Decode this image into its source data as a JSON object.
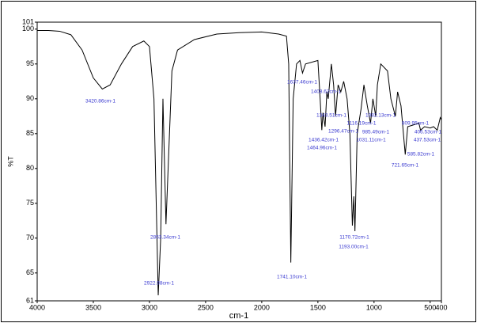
{
  "chart_data": {
    "type": "line",
    "x_label": "cm-1",
    "y_label": "%T",
    "x": [
      4000,
      3900,
      3800,
      3700,
      3600,
      3500,
      3420,
      3350,
      3250,
      3150,
      3050,
      3000,
      2960,
      2922,
      2900,
      2880,
      2853,
      2800,
      2750,
      2600,
      2400,
      2200,
      2000,
      1850,
      1780,
      1760,
      1741,
      1720,
      1690,
      1660,
      1637,
      1610,
      1500,
      1480,
      1465,
      1455,
      1436,
      1420,
      1408,
      1380,
      1360,
      1343,
      1320,
      1296,
      1270,
      1240,
      1215,
      1193,
      1180,
      1170,
      1150,
      1116,
      1090,
      1060,
      1031,
      1010,
      985,
      970,
      940,
      880,
      850,
      810,
      790,
      760,
      722,
      700,
      600,
      586,
      550,
      500,
      470,
      437,
      410,
      400
    ],
    "values": [
      99.8,
      99.8,
      99.7,
      99.2,
      97,
      93,
      91.4,
      92,
      95,
      97.5,
      98.3,
      97.5,
      90,
      61.8,
      70,
      90,
      72,
      94,
      97,
      98.5,
      99.3,
      99.5,
      99.6,
      99.3,
      99,
      95,
      66.5,
      90,
      95,
      95.5,
      93.7,
      95,
      95.5,
      90,
      85.5,
      88,
      86,
      91,
      90,
      95,
      92,
      87.5,
      92,
      91,
      92.5,
      90,
      85,
      71.8,
      76,
      71,
      85,
      88.5,
      92,
      89,
      86.5,
      90,
      87.5,
      92,
      95,
      94,
      90,
      87.5,
      91,
      89,
      82,
      86,
      86.5,
      85.5,
      86,
      85.8,
      86,
      85.5,
      87.3,
      87
    ],
    "color": "#000000",
    "xlim": [
      4000,
      400
    ],
    "xticks": [
      4000,
      3500,
      3000,
      2500,
      2000,
      1500,
      1000,
      500,
      400
    ],
    "ylim": [
      61,
      101
    ],
    "yticks": [
      61,
      65,
      70,
      75,
      80,
      85,
      90,
      95,
      100,
      101
    ],
    "annotations": [
      "3420.86cm-1",
      "2853.34cm-1",
      "2922.98cm-1",
      "1741.10cm-1",
      "1637.46cm-1",
      "1408.62cm-1",
      "1343.51cm-1",
      "1082.13cm-1",
      "1116.19cm-1",
      "1296.47cm-1",
      "985.49cm-1",
      "809.95cm-1",
      "1436.42cm-1",
      "1031.11cm-1",
      "406.53cm-1",
      "437.53cm-1",
      "1464.96cm-1",
      "585.82cm-1",
      "721.65cm-1",
      "1170.72cm-1",
      "1193.00cm-1"
    ]
  }
}
